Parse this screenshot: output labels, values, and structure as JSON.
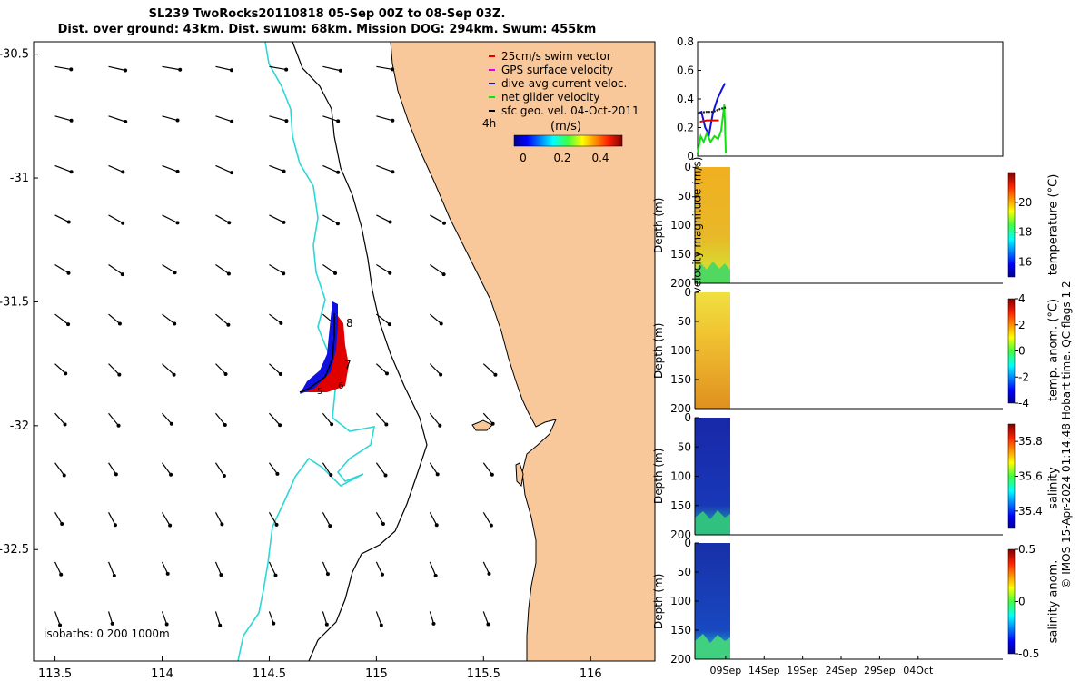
{
  "header": {
    "title_line1": "SL239 TwoRocks20110818 05-Sep 00Z to 08-Sep 03Z.",
    "title_line2": "Dist. over ground: 43km. Dist. swum: 68km. Mission DOG: 294km. Swum: 455km"
  },
  "credit": "© IMOS 15-Apr-2024 01:14:48 Hobart time. QC flags 1  2",
  "colors": {
    "land": "#f8c79a",
    "isobath_0": "#000000",
    "isobath_1000": "#2fd6d6",
    "track_swim": "#e00000",
    "track_current": "#1010e0",
    "net_velocity": "#10e010",
    "geo_velocity": "#000000"
  },
  "chart_data": [
    {
      "type": "scatter",
      "name": "map",
      "xlim": [
        113.4,
        116.3
      ],
      "ylim": [
        -32.95,
        -30.45
      ],
      "x_ticks": [
        113.5,
        114,
        114.5,
        115,
        115.5,
        116
      ],
      "x_tick_labels": [
        "113.5",
        "114",
        "114.5",
        "115",
        "115.5",
        "116"
      ],
      "y_ticks": [
        -30.5,
        -31,
        -31.5,
        -32,
        -32.5
      ],
      "y_tick_labels": [
        "-30.5",
        "-31",
        "-31.5",
        "-32",
        "-32.5"
      ],
      "legend": {
        "placement": "top-right",
        "entries": [
          {
            "label": "25cm/s swim vector",
            "color": "#e00000"
          },
          {
            "label": "GPS surface velocity",
            "color": "#e000e0"
          },
          {
            "label": "dive-avg current veloc.",
            "color": "#1010e0"
          },
          {
            "label": "net glider velocity",
            "color": "#10e010"
          },
          {
            "label": "sfc geo. vel. 04-Oct-2011",
            "color": "#000000"
          }
        ],
        "time_label": "4h"
      },
      "colorbar": {
        "label": "(m/s)",
        "ticks": [
          0,
          0.2,
          0.4
        ],
        "tick_labels": [
          "0",
          "0.2",
          "0.4"
        ],
        "range": [
          0,
          0.5
        ],
        "colormap": "jet"
      },
      "isobaths_label": "isobaths: 0   200  1000m",
      "day_labels": [
        "5",
        "6",
        "7",
        "8"
      ],
      "track_points": [
        [
          114.8,
          -31.5
        ],
        [
          114.79,
          -31.6
        ],
        [
          114.78,
          -31.7
        ],
        [
          114.76,
          -31.78
        ],
        [
          114.72,
          -31.83
        ],
        [
          114.6,
          -31.86
        ]
      ],
      "vector_grid": {
        "lons": [
          113.5,
          113.75,
          114,
          114.25,
          114.5,
          114.75,
          115,
          115.25,
          115.5
        ],
        "lats": [
          -30.55,
          -30.75,
          -30.95,
          -31.15,
          -31.35,
          -31.55,
          -31.75,
          -31.95,
          -32.15,
          -32.35,
          -32.55,
          -32.75
        ]
      }
    },
    {
      "type": "line",
      "name": "velocity",
      "ylabel": "velocity magnitude (m/s)",
      "ylim": [
        0,
        0.8
      ],
      "y_ticks": [
        0,
        0.2,
        0.4,
        0.6,
        0.8
      ],
      "y_tick_labels": [
        "0",
        "0.2",
        "0.4",
        "0.6",
        "0.8"
      ],
      "xlim": [
        0,
        40
      ],
      "series": [
        {
          "color": "#1010e0",
          "points": [
            [
              0,
              0.3
            ],
            [
              0.5,
              0.31
            ],
            [
              1.0,
              0.2
            ],
            [
              1.5,
              0.15
            ],
            [
              2.0,
              0.3
            ],
            [
              2.6,
              0.4
            ],
            [
              3.2,
              0.47
            ],
            [
              3.6,
              0.51
            ]
          ]
        },
        {
          "color": "#10e010",
          "points": [
            [
              0,
              0.02
            ],
            [
              0.4,
              0.14
            ],
            [
              0.8,
              0.1
            ],
            [
              1.2,
              0.16
            ],
            [
              1.7,
              0.1
            ],
            [
              2.2,
              0.14
            ],
            [
              2.7,
              0.12
            ],
            [
              3.1,
              0.18
            ],
            [
              3.5,
              0.36
            ],
            [
              3.7,
              0.02
            ]
          ]
        },
        {
          "color": "#202020",
          "points": [
            [
              0,
              0.3
            ],
            [
              1,
              0.31
            ],
            [
              2,
              0.31
            ],
            [
              3,
              0.33
            ],
            [
              3.7,
              0.34
            ]
          ]
        },
        {
          "color": "#e00000",
          "points": [
            [
              0.3,
              0.24
            ],
            [
              1.2,
              0.25
            ],
            [
              2.2,
              0.25
            ],
            [
              2.8,
              0.25
            ]
          ]
        }
      ]
    },
    {
      "type": "heatmap",
      "name": "temperature",
      "ylabel": "Depth (m)",
      "ylim": [
        0,
        200
      ],
      "y_ticks": [
        0,
        50,
        100,
        150,
        200
      ],
      "y_tick_labels": [
        "0",
        "50",
        "100",
        "150",
        "200"
      ],
      "colorbar_label": "temperature (°C)",
      "colorbar_range": [
        15,
        22
      ],
      "colorbar_ticks": [
        16,
        18,
        20
      ],
      "colorbar_tick_labels": [
        "16",
        "18",
        "20"
      ],
      "data_extent_x": [
        0,
        3.7
      ]
    },
    {
      "type": "heatmap",
      "name": "temp-anom",
      "ylabel": "Depth (m)",
      "ylim": [
        0,
        200
      ],
      "y_ticks": [
        0,
        50,
        100,
        150,
        200
      ],
      "y_tick_labels": [
        "0",
        "50",
        "100",
        "150",
        "200"
      ],
      "colorbar_label": "temp. anom. (°C)",
      "colorbar_range": [
        -4,
        4
      ],
      "colorbar_ticks": [
        -4,
        -2,
        0,
        2,
        4
      ],
      "colorbar_tick_labels": [
        "-4",
        "-2",
        "0",
        "2",
        "4"
      ],
      "data_extent_x": [
        0,
        3.7
      ]
    },
    {
      "type": "heatmap",
      "name": "salinity",
      "ylabel": "Depth (m)",
      "ylim": [
        0,
        200
      ],
      "y_ticks": [
        0,
        50,
        100,
        150,
        200
      ],
      "y_tick_labels": [
        "0",
        "50",
        "100",
        "150",
        "200"
      ],
      "colorbar_label": "salinity",
      "colorbar_range": [
        35.3,
        35.9
      ],
      "colorbar_ticks": [
        35.4,
        35.6,
        35.8
      ],
      "colorbar_tick_labels": [
        "35.4",
        "35.6",
        "35.8"
      ],
      "data_extent_x": [
        0,
        3.7
      ]
    },
    {
      "type": "heatmap",
      "name": "salinity-anom",
      "ylabel": "Depth (m)",
      "ylim": [
        0,
        200
      ],
      "y_ticks": [
        0,
        50,
        100,
        150,
        200
      ],
      "y_tick_labels": [
        "0",
        "50",
        "100",
        "150",
        "200"
      ],
      "colorbar_label": "salinity anom.",
      "colorbar_range": [
        -0.5,
        0.5
      ],
      "colorbar_ticks": [
        -0.5,
        0,
        0.5
      ],
      "colorbar_tick_labels": [
        "-0.5",
        "0",
        "0.5"
      ],
      "x_ticks": [
        4,
        9,
        14,
        19,
        24,
        29
      ],
      "x_tick_labels": [
        "09Sep",
        "14Sep",
        "19Sep",
        "24Sep",
        "29Sep",
        "04Oct"
      ],
      "xlim": [
        0,
        40
      ],
      "data_extent_x": [
        0,
        3.7
      ]
    }
  ]
}
